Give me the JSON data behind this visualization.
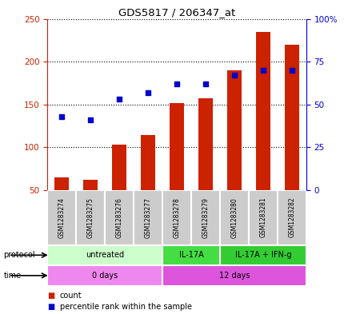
{
  "title": "GDS5817 / 206347_at",
  "samples": [
    "GSM1283274",
    "GSM1283275",
    "GSM1283276",
    "GSM1283277",
    "GSM1283278",
    "GSM1283279",
    "GSM1283280",
    "GSM1283281",
    "GSM1283282"
  ],
  "counts": [
    65,
    62,
    103,
    114,
    152,
    157,
    190,
    235,
    220
  ],
  "percentile_ranks": [
    43,
    41,
    53,
    57,
    62,
    62,
    67,
    70,
    70
  ],
  "ylim_left": [
    50,
    250
  ],
  "ylim_right": [
    0,
    100
  ],
  "yticks_left": [
    50,
    100,
    150,
    200,
    250
  ],
  "yticks_right": [
    0,
    25,
    50,
    75,
    100
  ],
  "bar_color": "#cc2200",
  "dot_color": "#0000cc",
  "protocol_groups": [
    {
      "label": "untreated",
      "start": 0,
      "end": 4,
      "color": "#ccffcc"
    },
    {
      "label": "IL-17A",
      "start": 4,
      "end": 6,
      "color": "#44dd44"
    },
    {
      "label": "IL-17A + IFN-g",
      "start": 6,
      "end": 9,
      "color": "#33cc33"
    }
  ],
  "time_groups": [
    {
      "label": "0 days",
      "start": 0,
      "end": 4,
      "color": "#ee88ee"
    },
    {
      "label": "12 days",
      "start": 4,
      "end": 9,
      "color": "#dd55dd"
    }
  ],
  "protocol_label": "protocol",
  "time_label": "time",
  "legend_count_label": "count",
  "legend_percentile_label": "percentile rank within the sample",
  "left_axis_color": "#cc2200",
  "right_axis_color": "#0000cc",
  "sample_box_color": "#cccccc",
  "box_edge_color": "#ffffff"
}
